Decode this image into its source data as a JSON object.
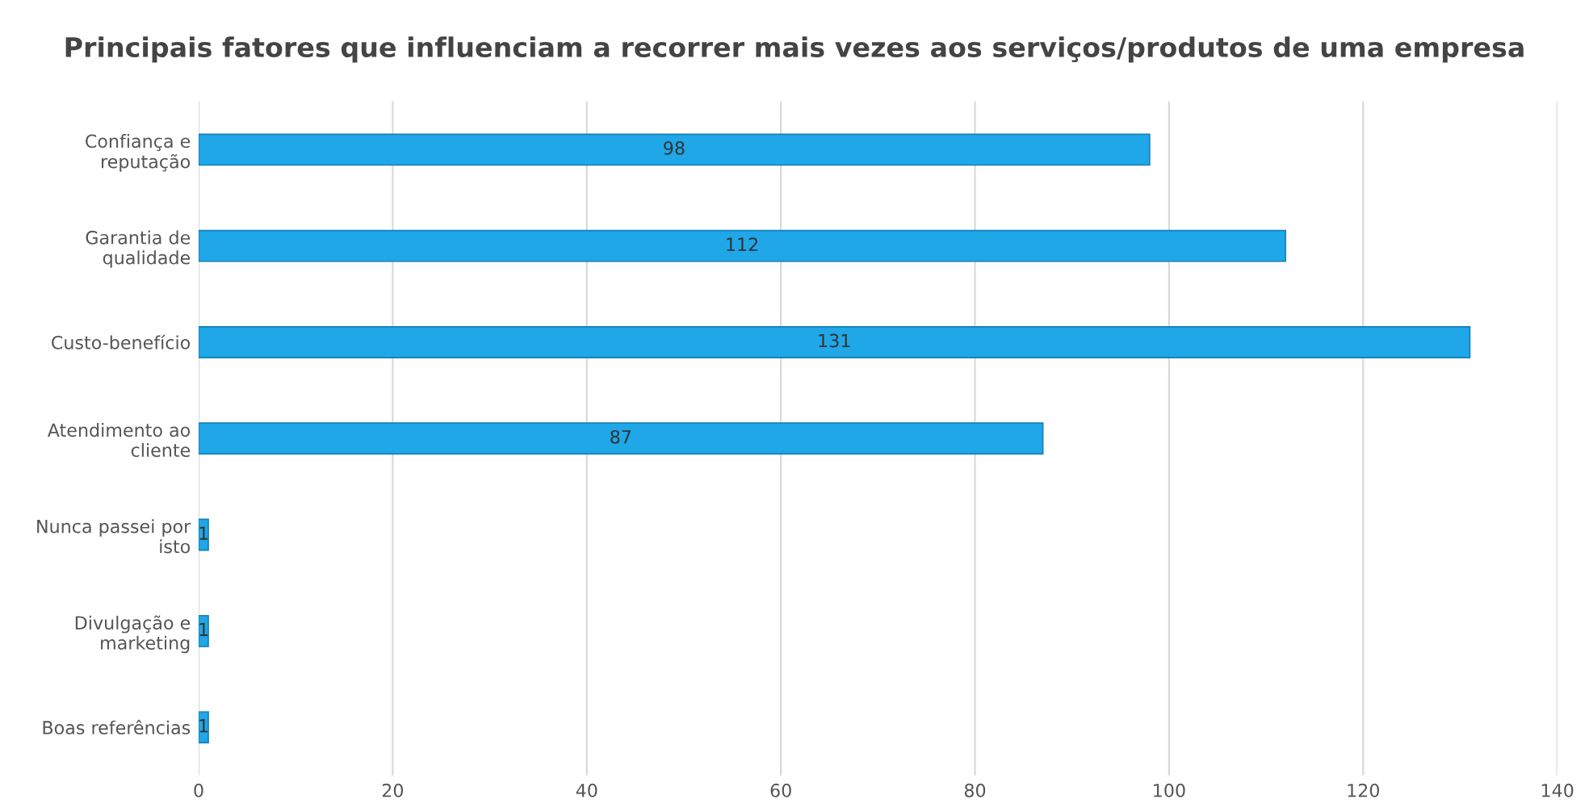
{
  "chart_data": {
    "type": "bar",
    "orientation": "horizontal",
    "title": "Principais fatores que influenciam a recorrer mais vezes aos serviços/produtos de uma empresa",
    "categories": [
      "Confiança e\nreputação",
      "Garantia de\nqualidade",
      "Custo-benefício",
      "Atendimento ao\ncliente",
      "Nunca passei por\nisto",
      "Divulgação e\nmarketing",
      "Boas referências"
    ],
    "values": [
      98,
      112,
      131,
      87,
      1,
      1,
      1
    ],
    "color": "#1fa7e8",
    "xlim": [
      0,
      140
    ],
    "xticks": [
      0,
      20,
      40,
      60,
      80,
      100,
      120,
      140
    ],
    "grid": "x",
    "data_labels": true
  }
}
